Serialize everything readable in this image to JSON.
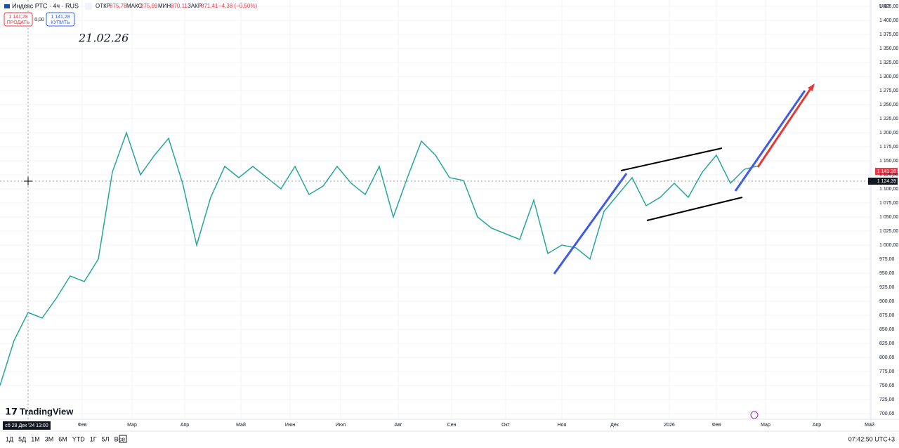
{
  "header": {
    "symbol": "Индекс РТС · 4ч · RUS",
    "open_label": "ОТКР",
    "open": "875,78",
    "high_label": "МАКС",
    "high": "875,99",
    "low_label": "МИН",
    "low": "870,11",
    "close_label": "ЗАКР",
    "close": "871,41",
    "change": "−4,38 (−0,50%)",
    "sell_price": "1 141,28",
    "sell": "ПРОДАТЬ",
    "spread": "0,00",
    "buy_price": "1 141,28",
    "buy": "КУПИТЬ"
  },
  "annotation": "21.02.26",
  "logo": "TradingView",
  "currency": "USD",
  "price_tags": {
    "last": "1 141,28",
    "cursor": "1 124,39"
  },
  "crosshair_time": "сб 28 Дек '24   13:00",
  "toolbar": {
    "ranges": [
      "1Д",
      "5Д",
      "1М",
      "3М",
      "6М",
      "YTD",
      "1Г",
      "5Л",
      "Все"
    ],
    "clock": "07:42:50 UTC+3"
  },
  "chart_data": {
    "type": "line",
    "color": "#26a69a",
    "x": [
      0,
      1,
      2,
      3,
      4,
      5,
      6,
      7,
      8,
      9,
      10,
      11,
      12,
      13,
      14,
      15,
      16,
      17,
      18,
      19,
      20,
      21,
      22,
      23,
      24,
      25,
      26,
      27,
      28,
      29,
      30,
      31,
      32,
      33,
      34,
      35,
      36,
      37,
      38,
      39,
      40,
      41,
      42,
      43,
      44,
      45,
      46,
      47,
      48,
      49,
      50,
      51,
      52,
      53,
      54
    ],
    "values": [
      750,
      830,
      880,
      870,
      905,
      945,
      935,
      975,
      1130,
      1200,
      1125,
      1160,
      1190,
      1110,
      1000,
      1085,
      1140,
      1120,
      1140,
      1120,
      1100,
      1140,
      1090,
      1105,
      1140,
      1110,
      1090,
      1140,
      1050,
      1120,
      1185,
      1160,
      1120,
      1115,
      1050,
      1030,
      1020,
      1010,
      1080,
      985,
      1000,
      995,
      975,
      1060,
      1090,
      1120,
      1070,
      1085,
      1110,
      1085,
      1130,
      1160,
      1110,
      1135,
      1141
    ],
    "xlim": [
      0,
      62
    ],
    "xticks": [
      {
        "value": 5.85,
        "label": "Фев"
      },
      {
        "value": 9.4,
        "label": "Мар"
      },
      {
        "value": 13.15,
        "label": "Апр"
      },
      {
        "value": 17.15,
        "label": "Май"
      },
      {
        "value": 20.65,
        "label": "Июн"
      },
      {
        "value": 24.25,
        "label": "Июл"
      },
      {
        "value": 28.35,
        "label": "Авг"
      },
      {
        "value": 32.15,
        "label": "Сен"
      },
      {
        "value": 36,
        "label": "Окт"
      },
      {
        "value": 40,
        "label": "Ноя"
      },
      {
        "value": 43.75,
        "label": "Дек"
      },
      {
        "value": 47.65,
        "label": "2026"
      },
      {
        "value": 51,
        "label": "Фев"
      },
      {
        "value": 54.5,
        "label": "Мар"
      },
      {
        "value": 58.15,
        "label": "Апр"
      },
      {
        "value": 61.9,
        "label": "Май"
      }
    ],
    "ylim": [
      690,
      1436.25
    ],
    "yticks": [
      {
        "value": 700,
        "label": "700,00"
      },
      {
        "value": 725,
        "label": "725,00"
      },
      {
        "value": 750,
        "label": "750,00"
      },
      {
        "value": 775,
        "label": "775,00"
      },
      {
        "value": 800,
        "label": "800,00"
      },
      {
        "value": 825,
        "label": "825,00"
      },
      {
        "value": 850,
        "label": "850,00"
      },
      {
        "value": 875,
        "label": "875,00"
      },
      {
        "value": 900,
        "label": "900,00"
      },
      {
        "value": 925,
        "label": "925,00"
      },
      {
        "value": 950,
        "label": "950,00"
      },
      {
        "value": 975,
        "label": "975,00"
      },
      {
        "value": 1000,
        "label": "1 000,00"
      },
      {
        "value": 1025,
        "label": "1 025,00"
      },
      {
        "value": 1050,
        "label": "1 050,00"
      },
      {
        "value": 1075,
        "label": "1 075,00"
      },
      {
        "value": 1100,
        "label": "1 100,00"
      },
      {
        "value": 1125,
        "label": "1 125,00"
      },
      {
        "value": 1150,
        "label": "1 150,00"
      },
      {
        "value": 1175,
        "label": "1 175,00"
      },
      {
        "value": 1200,
        "label": "1 200,00"
      },
      {
        "value": 1225,
        "label": "1 225,00"
      },
      {
        "value": 1250,
        "label": "1 250,00"
      },
      {
        "value": 1275,
        "label": "1 275,00"
      },
      {
        "value": 1300,
        "label": "1 300,00"
      },
      {
        "value": 1325,
        "label": "1 325,00"
      },
      {
        "value": 1350,
        "label": "1 350,00"
      },
      {
        "value": 1375,
        "label": "1 375,00"
      },
      {
        "value": 1400,
        "label": "1 400,00"
      },
      {
        "value": 1425,
        "label": "1 425,00"
      }
    ]
  }
}
